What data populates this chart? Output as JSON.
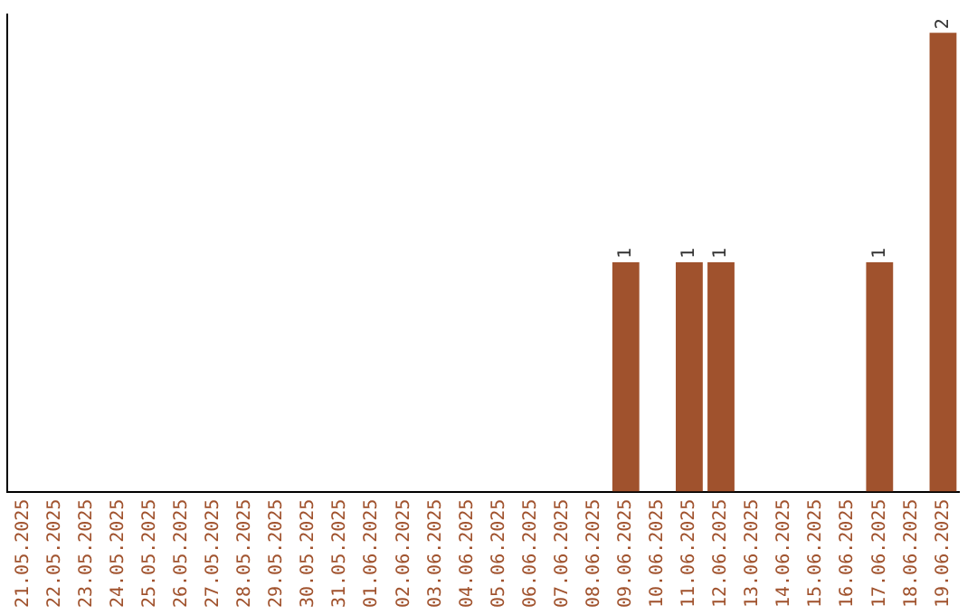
{
  "chart_data": {
    "type": "bar",
    "categories": [
      "21.05.2025",
      "22.05.2025",
      "23.05.2025",
      "24.05.2025",
      "25.05.2025",
      "26.05.2025",
      "27.05.2025",
      "28.05.2025",
      "29.05.2025",
      "30.05.2025",
      "31.05.2025",
      "01.06.2025",
      "02.06.2025",
      "03.06.2025",
      "04.06.2025",
      "05.06.2025",
      "06.06.2025",
      "07.06.2025",
      "08.06.2025",
      "09.06.2025",
      "10.06.2025",
      "11.06.2025",
      "12.06.2025",
      "13.06.2025",
      "14.06.2025",
      "15.06.2025",
      "16.06.2025",
      "17.06.2025",
      "18.06.2025",
      "19.06.2025"
    ],
    "values": [
      null,
      null,
      null,
      null,
      null,
      null,
      null,
      null,
      null,
      null,
      null,
      null,
      null,
      null,
      null,
      null,
      null,
      null,
      null,
      1,
      null,
      1,
      1,
      null,
      null,
      null,
      null,
      1,
      null,
      2
    ],
    "data_labels": true,
    "color": "#a0522d",
    "ylim": [
      0,
      2.08
    ],
    "tick_labels": "x",
    "grid": false,
    "legend": false
  }
}
